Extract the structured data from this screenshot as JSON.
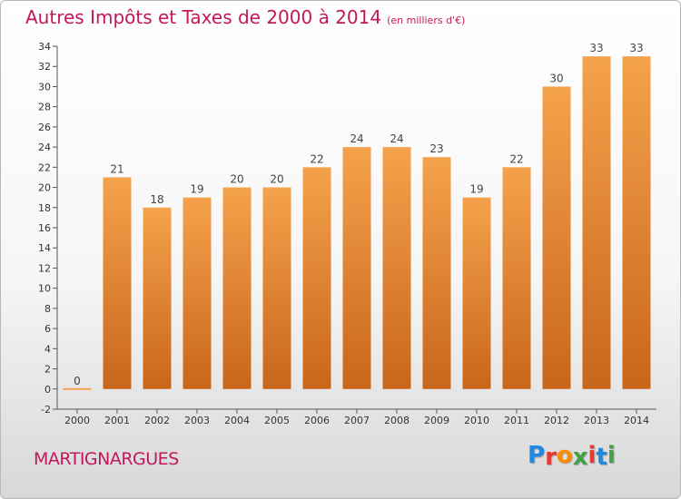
{
  "header": {
    "title": "Autres Impôts et Taxes de 2000 à 2014",
    "subtitle": "(en milliers d'€)"
  },
  "footer": {
    "town": "MARTIGNARGUES",
    "logo": [
      "P",
      "r",
      "o",
      "x",
      "i",
      "t",
      "i"
    ],
    "logo_colors": [
      "#1e88e5",
      "#e53935",
      "#fb8c00",
      "#43a047",
      "#e53935",
      "#1e88e5",
      "#43a047"
    ]
  },
  "chart_data": {
    "type": "bar",
    "title": "Autres Impôts et Taxes de 2000 à 2014",
    "subtitle": "(en milliers d'€)",
    "categories": [
      "2000",
      "2001",
      "2002",
      "2003",
      "2004",
      "2005",
      "2006",
      "2007",
      "2008",
      "2009",
      "2010",
      "2011",
      "2012",
      "2013",
      "2014"
    ],
    "values": [
      0,
      21,
      18,
      19,
      20,
      20,
      22,
      24,
      24,
      23,
      19,
      22,
      30,
      33,
      33
    ],
    "data_labels": [
      "0",
      "21",
      "18",
      "19",
      "20",
      "20",
      "22",
      "24",
      "24",
      "23",
      "19",
      "22",
      "30",
      "33",
      "33"
    ],
    "ylim": [
      -2,
      34
    ],
    "yticks": [
      -2,
      0,
      2,
      4,
      6,
      8,
      10,
      12,
      14,
      16,
      18,
      20,
      22,
      24,
      26,
      28,
      30,
      32,
      34
    ],
    "xlabel": "",
    "ylabel": "",
    "grid": false,
    "bar_color_top": "#f5a24c",
    "bar_color_bottom": "#c8661a"
  }
}
